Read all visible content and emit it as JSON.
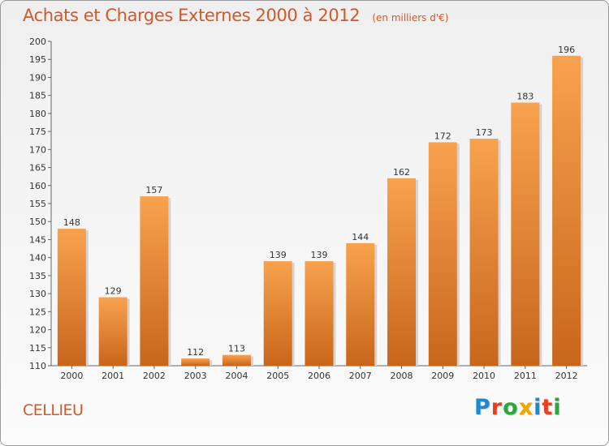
{
  "header": {
    "title": "Achats et Charges Externes 2000 à 2012",
    "subtitle": "(en milliers d'€)"
  },
  "footer": {
    "city": "CELLIEU",
    "brand_letters": [
      "P",
      "r",
      "o",
      "x",
      "i",
      "t",
      "i"
    ],
    "brand_colors": [
      "#1e88d0",
      "#e8401c",
      "#2aa83a",
      "#f0a800",
      "#1e88d0",
      "#e8401c",
      "#2aa83a"
    ]
  },
  "colors": {
    "bar_top": "#f8a24e",
    "bar_bottom": "#c8661c",
    "accent": "#d05a2a"
  },
  "chart_data": {
    "type": "bar",
    "title": "Achats et Charges Externes 2000 à 2012",
    "subtitle": "(en milliers d'€)",
    "categories": [
      "2000",
      "2001",
      "2002",
      "2003",
      "2004",
      "2005",
      "2006",
      "2007",
      "2008",
      "2009",
      "2010",
      "2011",
      "2012"
    ],
    "values": [
      148,
      129,
      157,
      112,
      113,
      139,
      139,
      144,
      162,
      172,
      173,
      183,
      196
    ],
    "ylim": [
      110,
      200
    ],
    "yticks": [
      110,
      115,
      120,
      125,
      130,
      135,
      140,
      145,
      150,
      155,
      160,
      165,
      170,
      175,
      180,
      185,
      190,
      195,
      200
    ],
    "xlabel": "",
    "ylabel": "",
    "grid": false
  }
}
